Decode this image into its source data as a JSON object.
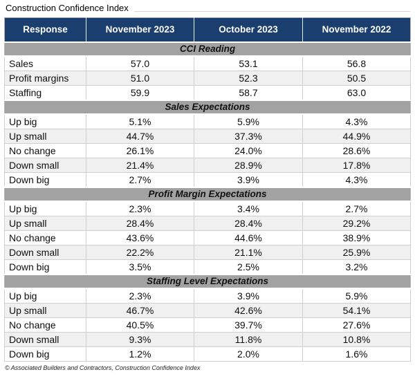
{
  "title": "Construction Confidence Index",
  "footer": "© Associated Builders and Contractors, Construction Confidence Index",
  "colors": {
    "header_bg": "#1a3e6e",
    "header_text": "#ffffff",
    "section_band_bg": "#a2a2a2",
    "section_band_text": "#111111",
    "row_stripe": "#f0f0f0",
    "grid_line": "#cfcfcf"
  },
  "chart_data": {
    "type": "table",
    "title": "Construction Confidence Index",
    "columns": [
      "Response",
      "November 2023",
      "October 2023",
      "November 2022"
    ],
    "sections": [
      {
        "title": "CCI Reading",
        "rows": [
          {
            "label": "Sales",
            "values": [
              "57.0",
              "53.1",
              "56.8"
            ]
          },
          {
            "label": "Profit margins",
            "values": [
              "51.0",
              "52.3",
              "50.5"
            ]
          },
          {
            "label": "Staffing",
            "values": [
              "59.9",
              "58.7",
              "63.0"
            ]
          }
        ]
      },
      {
        "title": "Sales Expectations",
        "rows": [
          {
            "label": "Up big",
            "values": [
              "5.1%",
              "5.9%",
              "4.3%"
            ]
          },
          {
            "label": "Up small",
            "values": [
              "44.7%",
              "37.3%",
              "44.9%"
            ]
          },
          {
            "label": "No change",
            "values": [
              "26.1%",
              "24.0%",
              "28.6%"
            ]
          },
          {
            "label": "Down small",
            "values": [
              "21.4%",
              "28.9%",
              "17.8%"
            ]
          },
          {
            "label": "Down big",
            "values": [
              "2.7%",
              "3.9%",
              "4.3%"
            ]
          }
        ]
      },
      {
        "title": "Profit Margin Expectations",
        "rows": [
          {
            "label": "Up big",
            "values": [
              "2.3%",
              "3.4%",
              "2.7%"
            ]
          },
          {
            "label": "Up small",
            "values": [
              "28.4%",
              "28.4%",
              "29.2%"
            ]
          },
          {
            "label": "No change",
            "values": [
              "43.6%",
              "44.6%",
              "38.9%"
            ]
          },
          {
            "label": "Down small",
            "values": [
              "22.2%",
              "21.1%",
              "25.9%"
            ]
          },
          {
            "label": "Down big",
            "values": [
              "3.5%",
              "2.5%",
              "3.2%"
            ]
          }
        ]
      },
      {
        "title": "Staffing Level Expectations",
        "rows": [
          {
            "label": "Up big",
            "values": [
              "2.3%",
              "3.9%",
              "5.9%"
            ]
          },
          {
            "label": "Up small",
            "values": [
              "46.7%",
              "42.6%",
              "54.1%"
            ]
          },
          {
            "label": "No change",
            "values": [
              "40.5%",
              "39.7%",
              "27.6%"
            ]
          },
          {
            "label": "Down small",
            "values": [
              "9.3%",
              "11.8%",
              "10.8%"
            ]
          },
          {
            "label": "Down big",
            "values": [
              "1.2%",
              "2.0%",
              "1.6%"
            ]
          }
        ]
      }
    ]
  }
}
